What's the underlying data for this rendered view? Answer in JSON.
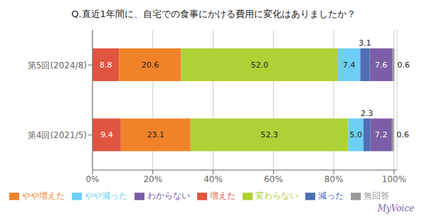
{
  "chart_data": {
    "type": "bar",
    "title": "Q.直近1年間に、自宅での食事にかける費用に変化はありましたか？",
    "orientation": "horizontal",
    "stacked": true,
    "categories": [
      "第5回(2024/8)",
      "第4回(2021/5)"
    ],
    "series": [
      {
        "name": "増えた",
        "color": "#e05540",
        "values": [
          8.8,
          9.4
        ],
        "value_labels": [
          "8.8",
          "9.4"
        ]
      },
      {
        "name": "やや増えた",
        "color": "#f0832a",
        "values": [
          20.6,
          23.1
        ],
        "value_labels": [
          "20.6",
          "23.1"
        ]
      },
      {
        "name": "変わらない",
        "color": "#aed136",
        "values": [
          52.0,
          52.3
        ],
        "value_labels": [
          "52.0",
          "52.3"
        ]
      },
      {
        "name": "やや減った",
        "color": "#6dcff6",
        "values": [
          7.4,
          5.0
        ],
        "value_labels": [
          "7.4",
          "5.0"
        ]
      },
      {
        "name": "減った",
        "color": "#4f6eb4",
        "values": [
          3.1,
          2.3
        ],
        "value_labels": [
          "3.1",
          "2.3"
        ]
      },
      {
        "name": "わからない",
        "color": "#7b5ea7",
        "values": [
          7.6,
          7.2
        ],
        "value_labels": [
          "7.6",
          "7.2"
        ]
      },
      {
        "name": "無回答",
        "color": "#999999",
        "values": [
          0.6,
          0.6
        ],
        "value_labels": [
          "0.6",
          "0.6"
        ]
      }
    ],
    "xlim": [
      0,
      101
    ],
    "xticks": [
      {
        "value": 0,
        "label": "0%"
      },
      {
        "value": 20,
        "label": "20%"
      },
      {
        "value": 40,
        "label": "40%"
      },
      {
        "value": 60,
        "label": "60%"
      },
      {
        "value": 80,
        "label": "80%"
      },
      {
        "value": 100,
        "label": "100%"
      }
    ],
    "grid": true,
    "legend": "bottom",
    "data_labels": true,
    "annotations": [
      {
        "text": "MyVoice",
        "color": "#7b5ea7"
      }
    ]
  }
}
